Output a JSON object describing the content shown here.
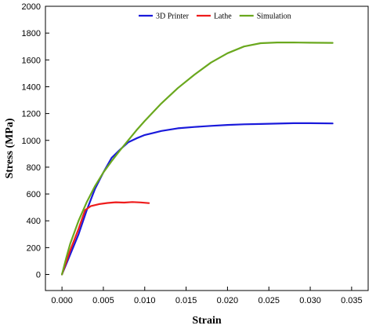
{
  "chart_data": {
    "type": "line",
    "xlabel": "Strain",
    "ylabel": "Stress (MPa)",
    "xlim": [
      -0.002,
      0.037
    ],
    "ylim": [
      -120,
      2000
    ],
    "xticks": [
      0.0,
      0.005,
      0.01,
      0.015,
      0.02,
      0.025,
      0.03,
      0.035
    ],
    "xtick_labels": [
      "0.000",
      "0.005",
      "0.010",
      "0.015",
      "0.020",
      "0.025",
      "0.030",
      "0.035"
    ],
    "yticks": [
      0,
      200,
      400,
      600,
      800,
      1000,
      1200,
      1400,
      1600,
      1800,
      2000
    ],
    "ytick_labels": [
      "0",
      "200",
      "400",
      "600",
      "800",
      "1000",
      "1200",
      "1400",
      "1600",
      "1800",
      "2000"
    ],
    "grid": false,
    "legend_position": "top",
    "series": [
      {
        "name": "3D Printer",
        "color": "#1a1adb",
        "x": [
          0.0,
          0.001,
          0.002,
          0.003,
          0.004,
          0.005,
          0.006,
          0.007,
          0.008,
          0.009,
          0.01,
          0.011,
          0.012,
          0.014,
          0.016,
          0.018,
          0.02,
          0.022,
          0.024,
          0.026,
          0.028,
          0.03,
          0.0327
        ],
        "y": [
          0,
          150,
          300,
          480,
          640,
          760,
          870,
          930,
          985,
          1015,
          1040,
          1055,
          1070,
          1090,
          1100,
          1108,
          1115,
          1120,
          1122,
          1125,
          1128,
          1128,
          1126
        ]
      },
      {
        "name": "Lathe",
        "color": "#ee1c1c",
        "x": [
          0.0,
          0.001,
          0.002,
          0.0028,
          0.0035,
          0.0045,
          0.0055,
          0.0065,
          0.0075,
          0.0085,
          0.0095,
          0.0105
        ],
        "y": [
          0,
          180,
          340,
          480,
          510,
          525,
          533,
          538,
          536,
          540,
          537,
          532
        ]
      },
      {
        "name": "Simulation",
        "color": "#6aa81e",
        "x": [
          0.0,
          0.0005,
          0.001,
          0.002,
          0.003,
          0.004,
          0.005,
          0.006,
          0.007,
          0.008,
          0.009,
          0.01,
          0.012,
          0.014,
          0.016,
          0.018,
          0.02,
          0.022,
          0.024,
          0.026,
          0.028,
          0.03,
          0.0327
        ],
        "y": [
          0,
          120,
          230,
          400,
          540,
          660,
          760,
          845,
          925,
          1000,
          1075,
          1145,
          1275,
          1390,
          1490,
          1580,
          1650,
          1700,
          1725,
          1730,
          1730,
          1728,
          1727
        ]
      }
    ]
  }
}
